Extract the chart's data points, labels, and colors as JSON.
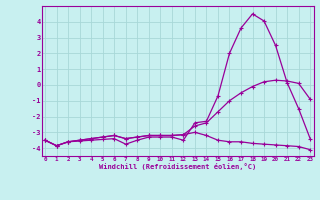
{
  "xlabel": "Windchill (Refroidissement éolien,°C)",
  "background_color": "#c8f0f0",
  "grid_color": "#a8d8d8",
  "line_color": "#990099",
  "x": [
    0,
    1,
    2,
    3,
    4,
    5,
    6,
    7,
    8,
    9,
    10,
    11,
    12,
    13,
    14,
    15,
    16,
    17,
    18,
    19,
    20,
    21,
    22,
    23
  ],
  "curve1": [
    -3.5,
    -3.85,
    -3.6,
    -3.55,
    -3.5,
    -3.45,
    -3.4,
    -3.75,
    -3.5,
    -3.3,
    -3.3,
    -3.3,
    -3.5,
    -2.4,
    -2.3,
    -0.7,
    2.0,
    3.6,
    4.5,
    4.05,
    2.5,
    0.15,
    -1.5,
    -3.4
  ],
  "curve2": [
    -3.5,
    -3.85,
    -3.6,
    -3.5,
    -3.4,
    -3.3,
    -3.2,
    -3.4,
    -3.3,
    -3.2,
    -3.2,
    -3.2,
    -3.15,
    -2.6,
    -2.4,
    -1.7,
    -1.0,
    -0.5,
    -0.1,
    0.2,
    0.3,
    0.25,
    0.1,
    -0.9
  ],
  "curve3": [
    -3.5,
    -3.85,
    -3.6,
    -3.5,
    -3.4,
    -3.3,
    -3.2,
    -3.4,
    -3.3,
    -3.2,
    -3.2,
    -3.2,
    -3.15,
    -3.0,
    -3.2,
    -3.5,
    -3.6,
    -3.6,
    -3.7,
    -3.75,
    -3.8,
    -3.85,
    -3.9,
    -4.1
  ],
  "xlim": [
    -0.3,
    23.3
  ],
  "ylim": [
    -4.5,
    5.0
  ],
  "yticks": [
    -4,
    -3,
    -2,
    -1,
    0,
    1,
    2,
    3,
    4
  ],
  "xticks": [
    0,
    1,
    2,
    3,
    4,
    5,
    6,
    7,
    8,
    9,
    10,
    11,
    12,
    13,
    14,
    15,
    16,
    17,
    18,
    19,
    20,
    21,
    22,
    23
  ]
}
